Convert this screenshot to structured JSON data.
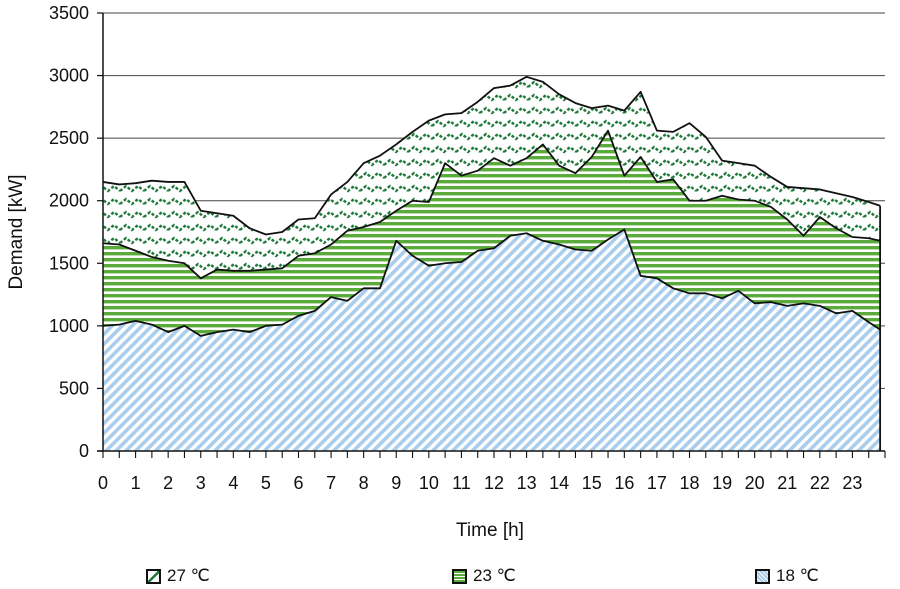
{
  "chart_data": {
    "type": "area",
    "stacked": true,
    "title": "",
    "xlabel": "Time [h]",
    "ylabel": "Demand [kW]",
    "xlim": [
      0,
      24
    ],
    "ylim": [
      0,
      3500
    ],
    "yticks": [
      0,
      500,
      1000,
      1500,
      2000,
      2500,
      3000,
      3500
    ],
    "xticks": [
      0,
      1,
      2,
      3,
      4,
      5,
      6,
      7,
      8,
      9,
      10,
      11,
      12,
      13,
      14,
      15,
      16,
      17,
      18,
      19,
      20,
      21,
      22,
      23
    ],
    "grid": "horizontal",
    "legend_position": "bottom",
    "x": [
      0,
      0.5,
      1,
      1.5,
      2,
      2.5,
      3,
      3.5,
      4,
      4.5,
      5,
      5.5,
      6,
      6.5,
      7,
      7.5,
      8,
      8.5,
      9,
      9.5,
      10,
      10.5,
      11,
      11.5,
      12,
      12.5,
      13,
      13.5,
      14,
      14.5,
      15,
      15.5,
      16,
      16.5,
      17,
      17.5,
      18,
      18.5,
      19,
      19.5,
      20,
      20.5,
      21,
      21.5,
      22,
      22.5,
      23,
      23.5,
      23.85
    ],
    "series": [
      {
        "name": "18 ℃",
        "color": "#a9cdec",
        "values": [
          1000,
          1010,
          1040,
          1010,
          950,
          1000,
          920,
          950,
          970,
          950,
          1000,
          1010,
          1080,
          1120,
          1230,
          1200,
          1300,
          1300,
          1680,
          1560,
          1480,
          1500,
          1510,
          1600,
          1620,
          1720,
          1740,
          1680,
          1650,
          1610,
          1600,
          1690,
          1770,
          1400,
          1380,
          1300,
          1260,
          1260,
          1220,
          1280,
          1180,
          1190,
          1160,
          1180,
          1160,
          1100,
          1120,
          1030,
          970
        ]
      },
      {
        "name": "23 ℃",
        "color": "#5aab3c",
        "values": [
          1660,
          1650,
          1600,
          1550,
          1520,
          1500,
          1380,
          1450,
          1440,
          1440,
          1450,
          1460,
          1560,
          1580,
          1650,
          1760,
          1790,
          1830,
          1920,
          2000,
          1990,
          2300,
          2200,
          2240,
          2340,
          2280,
          2340,
          2450,
          2280,
          2220,
          2350,
          2560,
          2200,
          2350,
          2150,
          2170,
          2000,
          2000,
          2040,
          2010,
          2000,
          1950,
          1850,
          1720,
          1870,
          1780,
          1710,
          1700,
          1680
        ]
      },
      {
        "name": "27 ℃",
        "color": "#1f7a3a",
        "values": [
          2150,
          2130,
          2140,
          2160,
          2150,
          2150,
          1920,
          1900,
          1880,
          1780,
          1730,
          1750,
          1850,
          1860,
          2050,
          2150,
          2300,
          2360,
          2450,
          2550,
          2640,
          2690,
          2700,
          2790,
          2900,
          2920,
          2990,
          2950,
          2850,
          2780,
          2740,
          2760,
          2720,
          2870,
          2560,
          2550,
          2620,
          2510,
          2320,
          2300,
          2280,
          2190,
          2110,
          2100,
          2090,
          2060,
          2030,
          1990,
          1960
        ]
      }
    ]
  },
  "axes": {
    "xlabel": "Time [h]",
    "ylabel": "Demand [kW]",
    "ytick_labels": [
      "0",
      "500",
      "1000",
      "1500",
      "2000",
      "2500",
      "3000",
      "3500"
    ],
    "xtick_labels": [
      "0",
      "1",
      "2",
      "3",
      "4",
      "5",
      "6",
      "7",
      "8",
      "9",
      "10",
      "11",
      "12",
      "13",
      "14",
      "15",
      "16",
      "17",
      "18",
      "19",
      "20",
      "21",
      "22",
      "23"
    ]
  },
  "legend": [
    {
      "label": "27 ℃",
      "pattern": "wave"
    },
    {
      "label": "23 ℃",
      "pattern": "hstripe"
    },
    {
      "label": "18 ℃",
      "pattern": "diag"
    }
  ]
}
